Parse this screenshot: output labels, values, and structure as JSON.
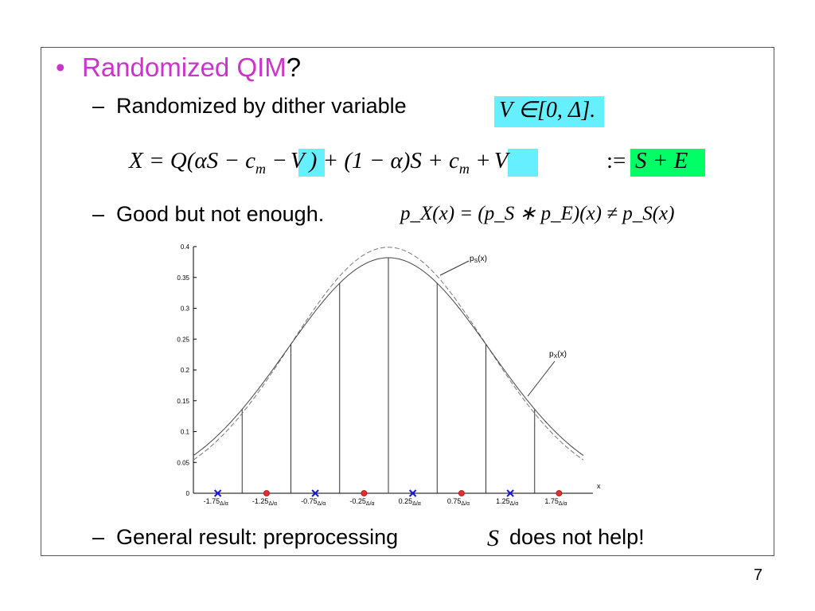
{
  "slide": {
    "bullet": "•",
    "title_colored": "Randomized QIM",
    "title_tail": "?",
    "sub1_dash": "–",
    "sub1_text": "Randomized by dither variable",
    "sub1_math": "V ∈[0, Δ].",
    "eq_main_a": "X = Q(αS − c",
    "eq_sub_m": "m",
    "eq_main_b": " −",
    "eq_V": "V",
    "eq_main_c": ") + (1 − α)S + c",
    "eq_main_d": " +",
    "eq_assign": ":=",
    "eq_SE": "S + E",
    "sub2_dash": "–",
    "sub2_text": "Good but not enough.",
    "sub2_math": "p_X(x) = (p_S ∗ p_E)(x) ≠ p_S(x)",
    "sub3_dash": "–",
    "sub3_text_a": "General result: preprocessing",
    "sub3_math": "S",
    "sub3_text_b": "does not help!",
    "page_number": "7"
  },
  "chart_data": {
    "type": "line",
    "ylim": [
      0,
      0.4
    ],
    "xlim": [
      -2.0,
      2.0
    ],
    "yticks": [
      "0",
      "0.05",
      "0.1",
      "0.15",
      "0.2",
      "0.25",
      "0.3",
      "0.35",
      "0.4"
    ],
    "xlabel": "x",
    "series": [
      {
        "name": "p_S(x)",
        "style": "dashed",
        "sigma": 1.0,
        "peak": 0.399
      },
      {
        "name": "p_X(x)",
        "style": "solid",
        "sigma": 1.045,
        "peak": 0.382
      }
    ],
    "annotations": [
      {
        "label": "p_S(x)",
        "sub": "S",
        "x": 0.9,
        "y": 0.38
      },
      {
        "label": "p_X(x)",
        "sub": "X",
        "x": 1.65,
        "y": 0.225
      }
    ],
    "markers": [
      {
        "x": -1.75,
        "type": "cross",
        "color": "#1a1ad4",
        "label": "-1.75",
        "unit": "Δ/α"
      },
      {
        "x": -1.25,
        "type": "circle",
        "color": "#e03030",
        "label": "-1.25",
        "unit": "Δ/α"
      },
      {
        "x": -0.75,
        "type": "cross",
        "color": "#1a1ad4",
        "label": "-0.75",
        "unit": "Δ/α"
      },
      {
        "x": -0.25,
        "type": "circle",
        "color": "#e03030",
        "label": "-0.25",
        "unit": "Δ/α"
      },
      {
        "x": 0.25,
        "type": "cross",
        "color": "#1a1ad4",
        "label": "0.25",
        "unit": "Δ/α"
      },
      {
        "x": 0.75,
        "type": "circle",
        "color": "#e03030",
        "label": "0.75",
        "unit": "Δ/α"
      },
      {
        "x": 1.25,
        "type": "cross",
        "color": "#1a1ad4",
        "label": "1.25",
        "unit": "Δ/α"
      },
      {
        "x": 1.75,
        "type": "circle",
        "color": "#e03030",
        "label": "1.75",
        "unit": "Δ/α"
      }
    ],
    "stems_x": [
      -1.5,
      -1.0,
      -0.5,
      0.0,
      0.5,
      1.0,
      1.5
    ]
  }
}
